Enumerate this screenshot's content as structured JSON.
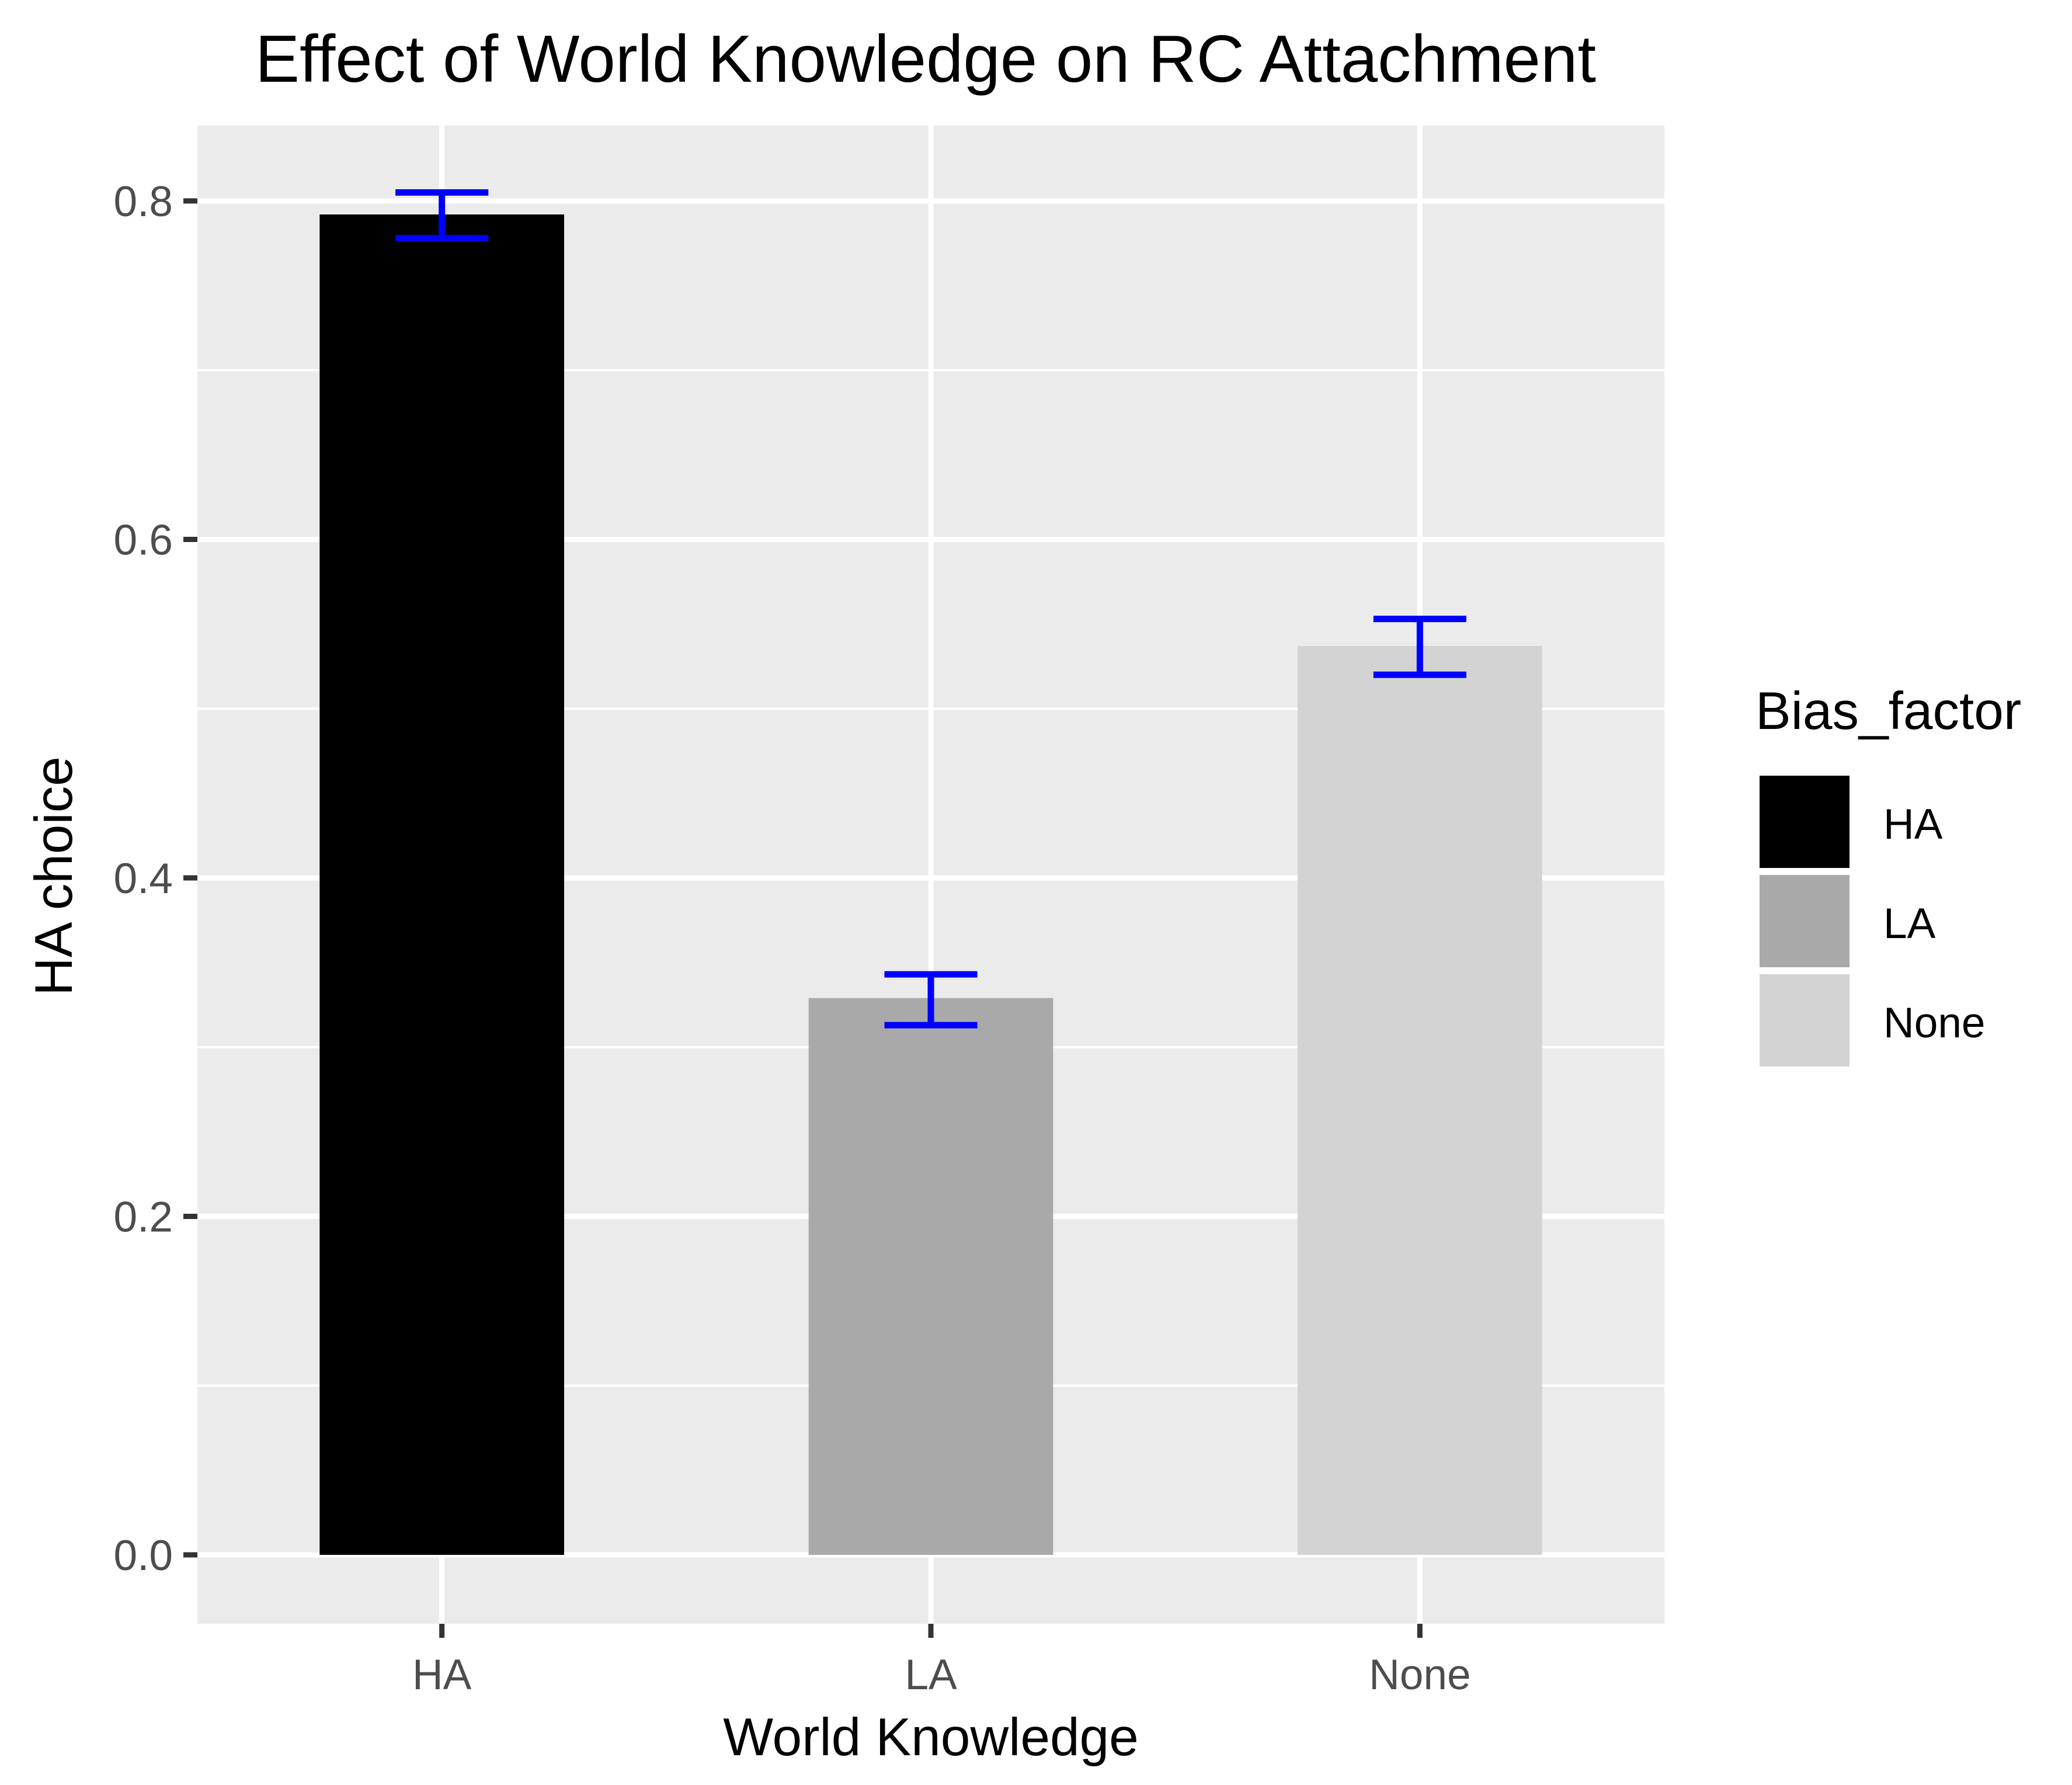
{
  "chart_data": {
    "type": "bar",
    "title": "Effect of World Knowledge on RC Attachment",
    "xlabel": "World Knowledge",
    "ylabel": "HA choice",
    "categories": [
      "HA",
      "LA",
      "None"
    ],
    "values": [
      0.792,
      0.329,
      0.537
    ],
    "error_bars": [
      {
        "lower": 0.778,
        "upper": 0.805
      },
      {
        "lower": 0.313,
        "upper": 0.343
      },
      {
        "lower": 0.52,
        "upper": 0.553
      }
    ],
    "fill_colors": [
      "#000000",
      "#A9A9A9",
      "#D3D3D3"
    ],
    "error_bar_color": "#0000FF",
    "ylim": [
      -0.04,
      0.85
    ],
    "yticks": [
      0.0,
      0.2,
      0.4,
      0.6,
      0.8
    ],
    "ytick_labels": [
      "0.0",
      "0.2",
      "0.4",
      "0.6",
      "0.8"
    ],
    "grid": true,
    "panel_background": "#EBEBEB",
    "legend": {
      "title": "Bias_factor",
      "position": "right",
      "entries": [
        {
          "label": "HA",
          "color": "#000000"
        },
        {
          "label": "LA",
          "color": "#A9A9A9"
        },
        {
          "label": "None",
          "color": "#D3D3D3"
        }
      ]
    }
  }
}
